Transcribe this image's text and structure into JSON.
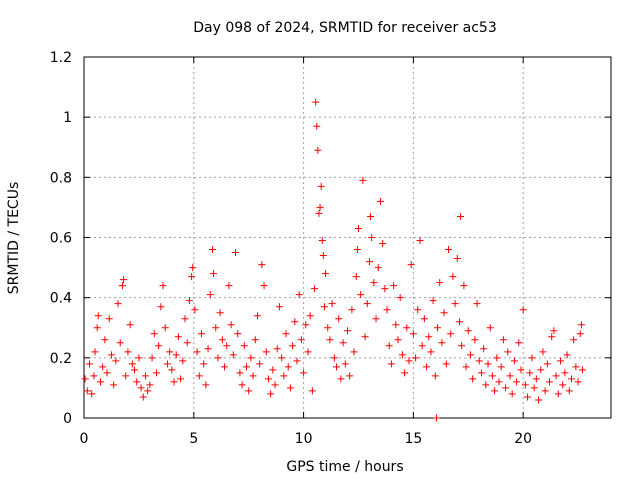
{
  "chart_data": {
    "type": "scatter",
    "title": "Day 098 of 2024, SRMTID for receiver ac53",
    "xlabel": "GPS time / hours",
    "ylabel": "SRMTID / TECUs",
    "xlim": [
      0,
      24
    ],
    "ylim": [
      0,
      1.2
    ],
    "x_ticks": [
      0,
      5,
      10,
      15,
      20
    ],
    "x_tick_labels": [
      "0",
      "5",
      "10",
      "15",
      "20"
    ],
    "y_ticks": [
      0,
      0.2,
      0.4,
      0.6,
      0.8,
      1.0,
      1.2
    ],
    "y_tick_labels": [
      "0",
      "0.2",
      "0.4",
      "0.6",
      "0.8",
      "1",
      "1.2"
    ],
    "grid": true,
    "marker": "plus",
    "series": [
      {
        "name": "SRMTID",
        "color": "#ff0000",
        "points": [
          [
            0.05,
            0.13
          ],
          [
            0.15,
            0.09
          ],
          [
            0.25,
            0.18
          ],
          [
            0.35,
            0.08
          ],
          [
            0.45,
            0.14
          ],
          [
            0.5,
            0.22
          ],
          [
            0.6,
            0.3
          ],
          [
            0.65,
            0.34
          ],
          [
            0.75,
            0.12
          ],
          [
            0.85,
            0.17
          ],
          [
            0.95,
            0.26
          ],
          [
            1.05,
            0.15
          ],
          [
            1.15,
            0.33
          ],
          [
            1.25,
            0.21
          ],
          [
            1.35,
            0.11
          ],
          [
            1.45,
            0.19
          ],
          [
            1.55,
            0.38
          ],
          [
            1.65,
            0.25
          ],
          [
            1.75,
            0.44
          ],
          [
            1.8,
            0.46
          ],
          [
            1.9,
            0.14
          ],
          [
            2.0,
            0.22
          ],
          [
            2.1,
            0.31
          ],
          [
            2.2,
            0.18
          ],
          [
            2.3,
            0.16
          ],
          [
            2.4,
            0.12
          ],
          [
            2.5,
            0.2
          ],
          [
            2.6,
            0.1
          ],
          [
            2.7,
            0.07
          ],
          [
            2.8,
            0.14
          ],
          [
            2.9,
            0.09
          ],
          [
            3.0,
            0.11
          ],
          [
            3.1,
            0.2
          ],
          [
            3.2,
            0.28
          ],
          [
            3.3,
            0.15
          ],
          [
            3.4,
            0.24
          ],
          [
            3.5,
            0.37
          ],
          [
            3.6,
            0.44
          ],
          [
            3.7,
            0.3
          ],
          [
            3.8,
            0.18
          ],
          [
            3.9,
            0.22
          ],
          [
            4.0,
            0.16
          ],
          [
            4.1,
            0.12
          ],
          [
            4.2,
            0.21
          ],
          [
            4.3,
            0.27
          ],
          [
            4.4,
            0.13
          ],
          [
            4.5,
            0.19
          ],
          [
            4.6,
            0.33
          ],
          [
            4.7,
            0.25
          ],
          [
            4.8,
            0.39
          ],
          [
            4.9,
            0.47
          ],
          [
            4.95,
            0.5
          ],
          [
            5.05,
            0.36
          ],
          [
            5.15,
            0.22
          ],
          [
            5.25,
            0.14
          ],
          [
            5.35,
            0.28
          ],
          [
            5.45,
            0.18
          ],
          [
            5.55,
            0.11
          ],
          [
            5.65,
            0.23
          ],
          [
            5.75,
            0.41
          ],
          [
            5.85,
            0.56
          ],
          [
            5.9,
            0.48
          ],
          [
            6.0,
            0.3
          ],
          [
            6.1,
            0.2
          ],
          [
            6.2,
            0.35
          ],
          [
            6.3,
            0.26
          ],
          [
            6.4,
            0.17
          ],
          [
            6.5,
            0.24
          ],
          [
            6.6,
            0.44
          ],
          [
            6.7,
            0.31
          ],
          [
            6.8,
            0.21
          ],
          [
            6.9,
            0.55
          ],
          [
            7.0,
            0.28
          ],
          [
            7.1,
            0.15
          ],
          [
            7.2,
            0.11
          ],
          [
            7.3,
            0.24
          ],
          [
            7.4,
            0.17
          ],
          [
            7.5,
            0.09
          ],
          [
            7.6,
            0.2
          ],
          [
            7.7,
            0.14
          ],
          [
            7.8,
            0.26
          ],
          [
            7.9,
            0.34
          ],
          [
            8.0,
            0.18
          ],
          [
            8.1,
            0.51
          ],
          [
            8.2,
            0.44
          ],
          [
            8.3,
            0.22
          ],
          [
            8.4,
            0.13
          ],
          [
            8.5,
            0.08
          ],
          [
            8.6,
            0.16
          ],
          [
            8.7,
            0.11
          ],
          [
            8.8,
            0.23
          ],
          [
            8.9,
            0.37
          ],
          [
            9.0,
            0.2
          ],
          [
            9.1,
            0.14
          ],
          [
            9.2,
            0.28
          ],
          [
            9.3,
            0.17
          ],
          [
            9.4,
            0.1
          ],
          [
            9.5,
            0.24
          ],
          [
            9.6,
            0.32
          ],
          [
            9.7,
            0.19
          ],
          [
            9.8,
            0.41
          ],
          [
            9.9,
            0.26
          ],
          [
            10.0,
            0.15
          ],
          [
            10.1,
            0.31
          ],
          [
            10.2,
            0.22
          ],
          [
            10.3,
            0.34
          ],
          [
            10.4,
            0.09
          ],
          [
            10.5,
            0.43
          ],
          [
            10.55,
            1.05
          ],
          [
            10.6,
            0.97
          ],
          [
            10.65,
            0.89
          ],
          [
            10.7,
            0.68
          ],
          [
            10.75,
            0.7
          ],
          [
            10.8,
            0.77
          ],
          [
            10.85,
            0.59
          ],
          [
            10.9,
            0.54
          ],
          [
            10.95,
            0.37
          ],
          [
            11.0,
            0.48
          ],
          [
            11.1,
            0.3
          ],
          [
            11.2,
            0.26
          ],
          [
            11.3,
            0.38
          ],
          [
            11.4,
            0.2
          ],
          [
            11.5,
            0.17
          ],
          [
            11.6,
            0.33
          ],
          [
            11.7,
            0.13
          ],
          [
            11.8,
            0.25
          ],
          [
            11.9,
            0.18
          ],
          [
            12.0,
            0.29
          ],
          [
            12.1,
            0.14
          ],
          [
            12.2,
            0.36
          ],
          [
            12.3,
            0.22
          ],
          [
            12.4,
            0.47
          ],
          [
            12.45,
            0.56
          ],
          [
            12.5,
            0.63
          ],
          [
            12.6,
            0.41
          ],
          [
            12.7,
            0.79
          ],
          [
            12.8,
            0.27
          ],
          [
            12.9,
            0.38
          ],
          [
            13.0,
            0.52
          ],
          [
            13.05,
            0.67
          ],
          [
            13.1,
            0.6
          ],
          [
            13.2,
            0.45
          ],
          [
            13.3,
            0.33
          ],
          [
            13.4,
            0.5
          ],
          [
            13.5,
            0.72
          ],
          [
            13.6,
            0.58
          ],
          [
            13.7,
            0.43
          ],
          [
            13.8,
            0.36
          ],
          [
            13.9,
            0.24
          ],
          [
            14.0,
            0.18
          ],
          [
            14.1,
            0.44
          ],
          [
            14.2,
            0.31
          ],
          [
            14.3,
            0.26
          ],
          [
            14.4,
            0.4
          ],
          [
            14.5,
            0.21
          ],
          [
            14.6,
            0.15
          ],
          [
            14.7,
            0.3
          ],
          [
            14.8,
            0.19
          ],
          [
            14.9,
            0.51
          ],
          [
            15.0,
            0.28
          ],
          [
            15.1,
            0.2
          ],
          [
            15.2,
            0.36
          ],
          [
            15.3,
            0.59
          ],
          [
            15.4,
            0.24
          ],
          [
            15.5,
            0.33
          ],
          [
            15.6,
            0.17
          ],
          [
            15.7,
            0.27
          ],
          [
            15.8,
            0.22
          ],
          [
            15.9,
            0.39
          ],
          [
            16.0,
            0.14
          ],
          [
            16.05,
            0.0
          ],
          [
            16.1,
            0.3
          ],
          [
            16.2,
            0.45
          ],
          [
            16.3,
            0.25
          ],
          [
            16.4,
            0.35
          ],
          [
            16.5,
            0.18
          ],
          [
            16.6,
            0.56
          ],
          [
            16.7,
            0.28
          ],
          [
            16.8,
            0.47
          ],
          [
            16.9,
            0.38
          ],
          [
            17.0,
            0.53
          ],
          [
            17.1,
            0.32
          ],
          [
            17.15,
            0.67
          ],
          [
            17.2,
            0.24
          ],
          [
            17.3,
            0.44
          ],
          [
            17.4,
            0.17
          ],
          [
            17.5,
            0.29
          ],
          [
            17.6,
            0.21
          ],
          [
            17.7,
            0.13
          ],
          [
            17.8,
            0.26
          ],
          [
            17.9,
            0.38
          ],
          [
            18.0,
            0.19
          ],
          [
            18.1,
            0.15
          ],
          [
            18.2,
            0.23
          ],
          [
            18.3,
            0.11
          ],
          [
            18.4,
            0.18
          ],
          [
            18.5,
            0.3
          ],
          [
            18.6,
            0.14
          ],
          [
            18.7,
            0.09
          ],
          [
            18.8,
            0.2
          ],
          [
            18.9,
            0.12
          ],
          [
            19.0,
            0.17
          ],
          [
            19.1,
            0.26
          ],
          [
            19.2,
            0.1
          ],
          [
            19.3,
            0.22
          ],
          [
            19.4,
            0.14
          ],
          [
            19.5,
            0.08
          ],
          [
            19.6,
            0.19
          ],
          [
            19.7,
            0.12
          ],
          [
            19.8,
            0.25
          ],
          [
            19.9,
            0.16
          ],
          [
            20.0,
            0.36
          ],
          [
            20.1,
            0.11
          ],
          [
            20.2,
            0.07
          ],
          [
            20.3,
            0.15
          ],
          [
            20.4,
            0.2
          ],
          [
            20.5,
            0.1
          ],
          [
            20.6,
            0.13
          ],
          [
            20.7,
            0.06
          ],
          [
            20.8,
            0.16
          ],
          [
            20.9,
            0.22
          ],
          [
            21.0,
            0.09
          ],
          [
            21.1,
            0.18
          ],
          [
            21.2,
            0.12
          ],
          [
            21.3,
            0.27
          ],
          [
            21.4,
            0.29
          ],
          [
            21.5,
            0.14
          ],
          [
            21.6,
            0.08
          ],
          [
            21.7,
            0.19
          ],
          [
            21.8,
            0.11
          ],
          [
            21.9,
            0.15
          ],
          [
            22.0,
            0.21
          ],
          [
            22.1,
            0.09
          ],
          [
            22.2,
            0.13
          ],
          [
            22.3,
            0.26
          ],
          [
            22.4,
            0.17
          ],
          [
            22.5,
            0.12
          ],
          [
            22.6,
            0.28
          ],
          [
            22.65,
            0.31
          ],
          [
            22.7,
            0.16
          ]
        ]
      }
    ]
  }
}
